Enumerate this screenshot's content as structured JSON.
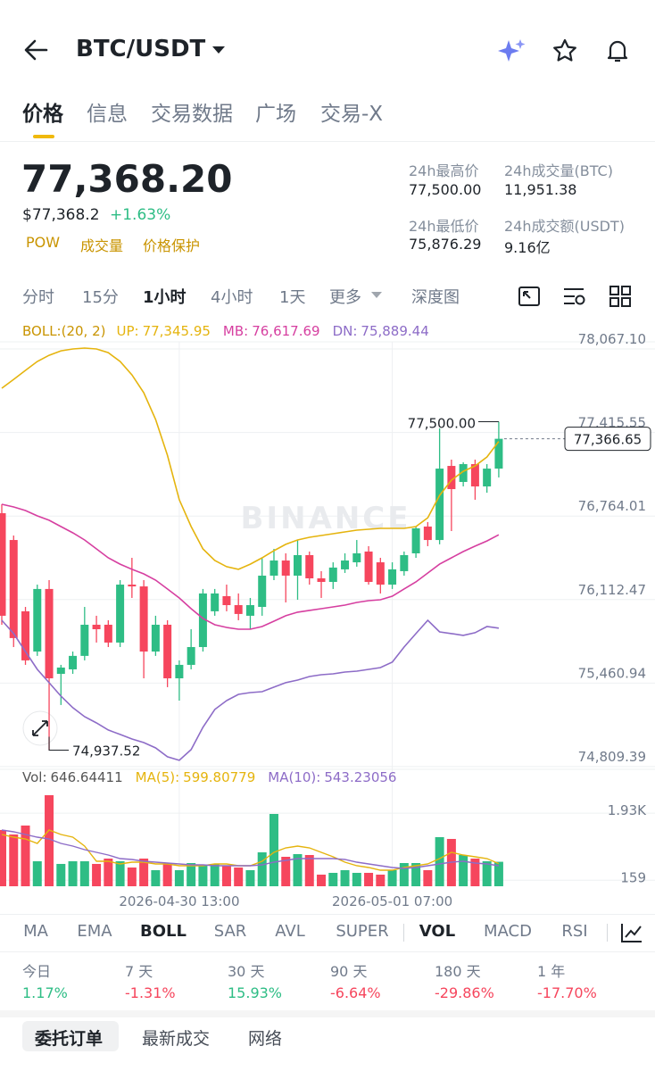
{
  "header": {
    "title": "BTC/USDT"
  },
  "tabs": [
    "价格",
    "信息",
    "交易数据",
    "广场",
    "交易-X"
  ],
  "price": {
    "last": "77,368.20",
    "usd": "$77,368.2",
    "change": "+1.63%",
    "tags": [
      "POW",
      "成交量",
      "价格保护"
    ]
  },
  "stats": [
    {
      "label": "24h最高价",
      "value": "77,500.00"
    },
    {
      "label": "24h成交量(BTC)",
      "value": "11,951.38"
    },
    {
      "label": "24h最低价",
      "value": "75,876.29"
    },
    {
      "label": "24h成交额(USDT)",
      "value": "9.16亿"
    }
  ],
  "intervals": [
    "分时",
    "15分",
    "1小时",
    "4小时",
    "1天",
    "更多",
    "深度图"
  ],
  "chart_data": [
    {
      "type": "candlestick",
      "legend_title": "BOLL:(20, 2)",
      "watermark": "BINANCE",
      "categories": [
        null,
        null,
        null,
        null,
        null,
        null,
        null,
        null,
        null,
        null,
        null,
        null,
        null,
        null,
        null,
        "2026-04-30 13:00",
        null,
        null,
        null,
        null,
        null,
        null,
        null,
        null,
        null,
        null,
        null,
        null,
        null,
        null,
        null,
        null,
        null,
        "2026-05-01 07:00",
        null,
        null,
        null,
        null,
        null,
        null,
        null,
        null,
        null
      ],
      "open": [
        76786,
        76577,
        76021,
        75707,
        76195,
        75533,
        75568,
        75673,
        75916,
        75916,
        75777,
        76229,
        76215,
        75707,
        75916,
        75498,
        75603,
        75742,
        76021,
        76139,
        76069,
        75986,
        76055,
        76299,
        76417,
        76299,
        76459,
        76278,
        76250,
        76348,
        76403,
        76487,
        76403,
        76229,
        76334,
        76473,
        76682,
        76577,
        77155,
        77030,
        77169,
        76995,
        77134
      ],
      "high": [
        76856,
        76612,
        76055,
        76229,
        76264,
        75603,
        75707,
        76055,
        75986,
        75951,
        76264,
        76438,
        76264,
        75986,
        75951,
        75638,
        75881,
        76195,
        76195,
        76229,
        76160,
        76125,
        76438,
        76508,
        76473,
        76577,
        76487,
        76334,
        76403,
        76473,
        76577,
        76529,
        76438,
        76403,
        76487,
        76682,
        76717,
        77448,
        77204,
        77183,
        77204,
        77169,
        77500.0
      ],
      "low": [
        75916,
        75742,
        75603,
        75673,
        74937.52,
        75290,
        75533,
        75638,
        75777,
        75742,
        75742,
        76125,
        75498,
        75673,
        75429,
        75324,
        75568,
        75707,
        75986,
        76021,
        75951,
        75881,
        75986,
        76264,
        76090,
        76111,
        76229,
        76125,
        76195,
        76320,
        76369,
        76229,
        76160,
        76195,
        76299,
        76438,
        76529,
        76543,
        76647,
        76995,
        76891,
        76946,
        77065
      ],
      "close": [
        75986,
        75812,
        75638,
        76195,
        75498,
        75582,
        75673,
        75916,
        75881,
        75777,
        76229,
        76215,
        75707,
        75916,
        75498,
        75603,
        75742,
        76160,
        76160,
        76069,
        76000,
        76069,
        76299,
        76417,
        76299,
        76459,
        76278,
        76250,
        76362,
        76417,
        76473,
        76250,
        76229,
        76348,
        76459,
        76668,
        76577,
        77134,
        76974,
        77169,
        76995,
        77134,
        77366.65
      ],
      "up_color": "#2EBD85",
      "down_color": "#F6465D",
      "series": [
        {
          "name": "UP",
          "legend_value": "77,345.95",
          "color": "#E5B40E",
          "values": [
            77761,
            77830,
            77900,
            77970,
            78018,
            78053,
            78067,
            78074,
            78067,
            78039,
            77970,
            77865,
            77726,
            77517,
            77239,
            76891,
            76682,
            76508,
            76417,
            76369,
            76348,
            76389,
            76438,
            76494,
            76543,
            76577,
            76598,
            76612,
            76626,
            76640,
            76654,
            76661,
            76668,
            76668,
            76668,
            76682,
            76751,
            76925,
            77044,
            77113,
            77155,
            77225,
            77345.95
          ]
        },
        {
          "name": "MB",
          "legend_value": "76,617.69",
          "color": "#D63FA0",
          "values": [
            76856,
            76835,
            76807,
            76765,
            76731,
            76682,
            76633,
            76577,
            76508,
            76438,
            76389,
            76348,
            76313,
            76264,
            76195,
            76125,
            76041,
            75965,
            75916,
            75895,
            75881,
            75881,
            75902,
            75944,
            75986,
            76014,
            76028,
            76041,
            76055,
            76069,
            76090,
            76104,
            76111,
            76139,
            76195,
            76250,
            76320,
            76389,
            76438,
            76487,
            76529,
            76570,
            76617.69
          ]
        },
        {
          "name": "DN",
          "legend_value": "75,889.44",
          "color": "#8D6CC7",
          "values": [
            75951,
            75847,
            75707,
            75568,
            75464,
            75359,
            75269,
            75199,
            75150,
            75095,
            75060,
            75025,
            74997,
            74955,
            74886,
            74858,
            74942,
            75116,
            75255,
            75324,
            75373,
            75387,
            75394,
            75429,
            75464,
            75484,
            75512,
            75526,
            75533,
            75547,
            75554,
            75568,
            75582,
            75624,
            75742,
            75847,
            75951,
            75860,
            75847,
            75833,
            75854,
            75902,
            75889.44
          ]
        }
      ],
      "ylim": [
        74788,
        78123
      ],
      "yticks": [
        {
          "value": 78067.1,
          "label": "78,067.10"
        },
        {
          "value": 77415.55,
          "label": "77,415.55"
        },
        {
          "value": 76764.01,
          "label": "76,764.01"
        },
        {
          "value": 76112.47,
          "label": "76,112.47"
        },
        {
          "value": 75460.94,
          "label": "75,460.94"
        },
        {
          "value": 74809.39,
          "label": "74,809.39"
        }
      ],
      "grid": true,
      "high_label": "77,500.00",
      "low_label": "74,937.52",
      "last_label": "77,366.65"
    },
    {
      "type": "bar",
      "categories": [
        null,
        null,
        null,
        null,
        null,
        null,
        null,
        null,
        null,
        null,
        null,
        null,
        null,
        null,
        null,
        "2026-04-30 13:00",
        null,
        null,
        null,
        null,
        null,
        null,
        null,
        null,
        null,
        null,
        null,
        null,
        null,
        null,
        null,
        null,
        null,
        "2026-05-01 07:00",
        null,
        null,
        null,
        null,
        null,
        null,
        null,
        null,
        null
      ],
      "series": [
        {
          "name": "Vol",
          "legend_value": "646.64411",
          "color": "#555555",
          "values": [
            1486,
            1368,
            1604,
            660,
            2406,
            590,
            660,
            660,
            590,
            731,
            660,
            495,
            731,
            425,
            590,
            425,
            613,
            542,
            590,
            542,
            495,
            425,
            896,
            1910,
            778,
            849,
            825,
            307,
            354,
            425,
            354,
            354,
            307,
            425,
            613,
            613,
            425,
            1297,
            1250,
            825,
            731,
            660,
            646.64411
          ]
        },
        {
          "name": "MA(5)",
          "legend_value": "599.80779",
          "color": "#E5B40E",
          "values": [
            1368,
            1297,
            1250,
            1132,
            1486,
            1368,
            1297,
            1061,
            660,
            660,
            590,
            637,
            637,
            590,
            590,
            542,
            542,
            542,
            590,
            590,
            542,
            542,
            660,
            896,
            1014,
            1061,
            1014,
            896,
            778,
            637,
            542,
            495,
            425,
            425,
            495,
            542,
            590,
            731,
            896,
            825,
            778,
            731,
            599.80779
          ]
        },
        {
          "name": "MA(10)",
          "legend_value": "543.23056",
          "color": "#8D6CC7",
          "values": [
            1486,
            1439,
            1368,
            1297,
            1250,
            1132,
            1061,
            967,
            896,
            825,
            731,
            708,
            660,
            637,
            613,
            590,
            566,
            566,
            542,
            542,
            542,
            542,
            566,
            637,
            684,
            731,
            731,
            731,
            731,
            708,
            637,
            590,
            542,
            495,
            472,
            495,
            542,
            590,
            637,
            660,
            613,
            590,
            543.23056
          ]
        }
      ],
      "ylim": [
        0,
        2570
      ],
      "yticks": [
        {
          "value": 1930,
          "label": "1.93K"
        },
        159
      ],
      "grid": true
    }
  ],
  "indicators": [
    "MA",
    "EMA",
    "BOLL",
    "SAR",
    "AVL",
    "SUPER",
    "VOL",
    "MACD",
    "RSI"
  ],
  "performance": [
    {
      "label": "今日",
      "value": "1.17%"
    },
    {
      "label": "7 天",
      "value": "-1.31%"
    },
    {
      "label": "30 天",
      "value": "15.93%"
    },
    {
      "label": "90 天",
      "value": "-6.64%"
    },
    {
      "label": "180 天",
      "value": "-29.86%"
    },
    {
      "label": "1 年",
      "value": "-17.70%"
    }
  ],
  "bottom_tabs": [
    "委托订单",
    "最新成交",
    "网络"
  ]
}
